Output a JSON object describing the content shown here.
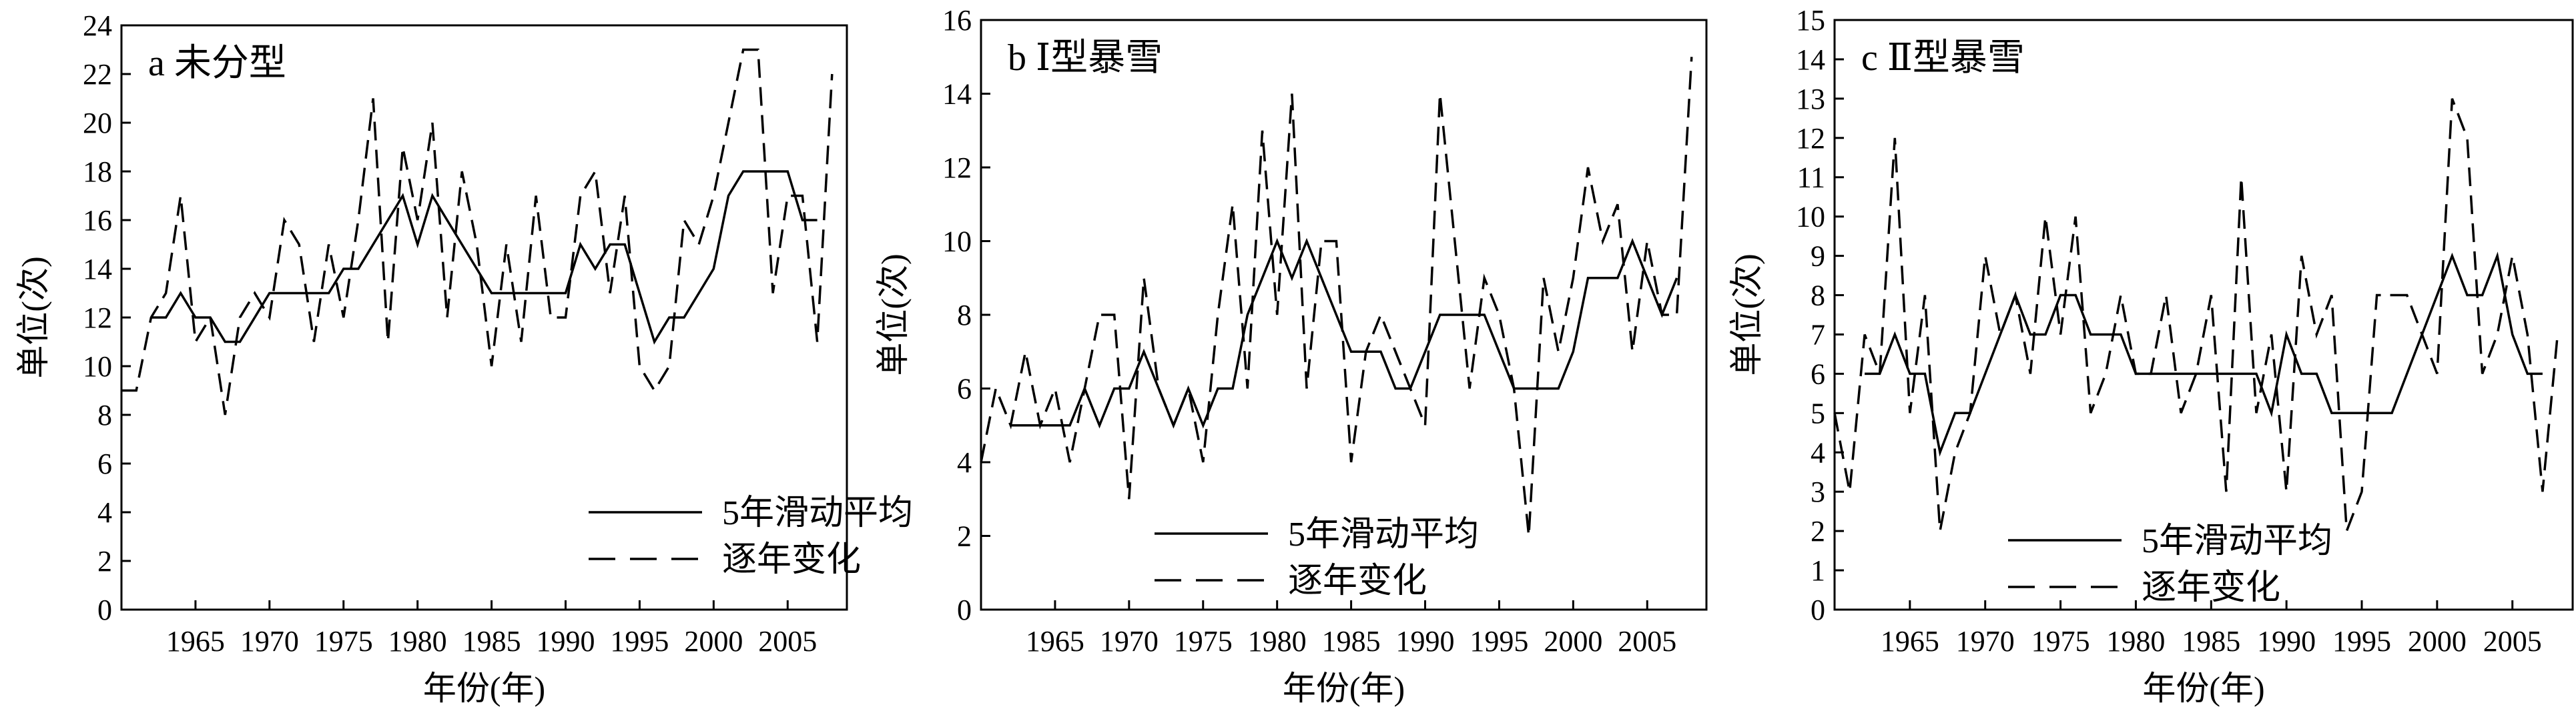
{
  "chart_data": [
    {
      "type": "line",
      "title": "a 未分型",
      "xlabel": "年份(年)",
      "ylabel": "单位(次)",
      "xlim": [
        1960,
        2009
      ],
      "ylim": [
        0,
        24
      ],
      "xticks": [
        1965,
        1970,
        1975,
        1980,
        1985,
        1990,
        1995,
        2000,
        2005
      ],
      "yticks": [
        0,
        2,
        4,
        6,
        8,
        10,
        12,
        14,
        16,
        18,
        20,
        22,
        24
      ],
      "grid": false,
      "legend_position": "bottom-right",
      "series": [
        {
          "name": "5年滑动平均",
          "style": "solid",
          "x": [
            1962,
            1963,
            1964,
            1965,
            1966,
            1967,
            1968,
            1969,
            1970,
            1971,
            1972,
            1973,
            1974,
            1975,
            1976,
            1977,
            1978,
            1979,
            1980,
            1981,
            1982,
            1983,
            1984,
            1985,
            1986,
            1987,
            1988,
            1989,
            1990,
            1991,
            1992,
            1993,
            1994,
            1995,
            1996,
            1997,
            1998,
            1999,
            2000,
            2001,
            2002,
            2003,
            2004,
            2005,
            2006,
            2007
          ],
          "y": [
            12,
            12,
            13,
            12,
            12,
            11,
            11,
            12,
            13,
            13,
            13,
            13,
            13,
            14,
            14,
            15,
            16,
            17,
            15,
            17,
            16,
            15,
            14,
            13,
            13,
            13,
            13,
            13,
            13,
            15,
            14,
            15,
            15,
            13,
            11,
            12,
            12,
            13,
            14,
            17,
            18,
            18,
            18,
            18,
            16,
            16
          ]
        },
        {
          "name": "逐年变化",
          "style": "dashed",
          "x": [
            1960,
            1961,
            1962,
            1963,
            1964,
            1965,
            1966,
            1967,
            1968,
            1969,
            1970,
            1971,
            1972,
            1973,
            1974,
            1975,
            1976,
            1977,
            1978,
            1979,
            1980,
            1981,
            1982,
            1983,
            1984,
            1985,
            1986,
            1987,
            1988,
            1989,
            1990,
            1991,
            1992,
            1993,
            1994,
            1995,
            1996,
            1997,
            1998,
            1999,
            2000,
            2001,
            2002,
            2003,
            2004,
            2005,
            2006,
            2007,
            2008
          ],
          "y": [
            9,
            9,
            12,
            13,
            17,
            11,
            12,
            8,
            12,
            13,
            12,
            16,
            15,
            11,
            15,
            12,
            16,
            21,
            11,
            19,
            16,
            20,
            12,
            18,
            15,
            10,
            15,
            11,
            17,
            12,
            12,
            17,
            18,
            13,
            17,
            10,
            9,
            10,
            16,
            15,
            17,
            20,
            23,
            23,
            13,
            17,
            17,
            11,
            22
          ]
        }
      ]
    },
    {
      "type": "line",
      "title": "b Ⅰ型暴雪",
      "xlabel": "年份(年)",
      "ylabel": "单位(次)",
      "xlim": [
        1960,
        2009
      ],
      "ylim": [
        0,
        16
      ],
      "xticks": [
        1965,
        1970,
        1975,
        1980,
        1985,
        1990,
        1995,
        2000,
        2005
      ],
      "yticks": [
        0,
        2,
        4,
        6,
        8,
        10,
        12,
        14,
        16
      ],
      "grid": false,
      "legend_position": "bottom-center",
      "series": [
        {
          "name": "5年滑动平均",
          "style": "solid",
          "x": [
            1962,
            1963,
            1964,
            1965,
            1966,
            1967,
            1968,
            1969,
            1970,
            1971,
            1972,
            1973,
            1974,
            1975,
            1976,
            1977,
            1978,
            1979,
            1980,
            1981,
            1982,
            1983,
            1984,
            1985,
            1986,
            1987,
            1988,
            1989,
            1990,
            1991,
            1992,
            1993,
            1994,
            1995,
            1996,
            1997,
            1998,
            1999,
            2000,
            2001,
            2002,
            2003,
            2004,
            2005,
            2006,
            2007
          ],
          "y": [
            5,
            5,
            5,
            5,
            5,
            6,
            5,
            6,
            6,
            7,
            6,
            5,
            6,
            5,
            6,
            6,
            8,
            9,
            10,
            9,
            10,
            9,
            8,
            7,
            7,
            7,
            6,
            6,
            7,
            8,
            8,
            8,
            8,
            7,
            6,
            6,
            6,
            6,
            7,
            9,
            9,
            9,
            10,
            9,
            8,
            9
          ]
        },
        {
          "name": "逐年变化",
          "style": "dashed",
          "x": [
            1960,
            1961,
            1962,
            1963,
            1964,
            1965,
            1966,
            1967,
            1968,
            1969,
            1970,
            1971,
            1972,
            1973,
            1974,
            1975,
            1976,
            1977,
            1978,
            1979,
            1980,
            1981,
            1982,
            1983,
            1984,
            1985,
            1986,
            1987,
            1988,
            1989,
            1990,
            1991,
            1992,
            1993,
            1994,
            1995,
            1996,
            1997,
            1998,
            1999,
            2000,
            2001,
            2002,
            2003,
            2004,
            2005,
            2006,
            2007,
            2008
          ],
          "y": [
            4,
            6,
            5,
            7,
            5,
            6,
            4,
            6,
            8,
            8,
            3,
            9,
            6,
            5,
            6,
            4,
            8,
            11,
            6,
            13,
            8,
            14,
            6,
            10,
            10,
            4,
            7,
            8,
            7,
            6,
            5,
            14,
            10,
            6,
            9,
            8,
            6,
            2,
            9,
            7,
            9,
            12,
            10,
            11,
            7,
            10,
            8,
            8,
            15
          ]
        }
      ]
    },
    {
      "type": "line",
      "title": "c Ⅱ型暴雪",
      "xlabel": "年份(年)",
      "ylabel": "单位(次)",
      "xlim": [
        1960,
        2009
      ],
      "ylim": [
        0,
        15
      ],
      "xticks": [
        1965,
        1970,
        1975,
        1980,
        1985,
        1990,
        1995,
        2000,
        2005
      ],
      "yticks": [
        0,
        1,
        2,
        3,
        4,
        5,
        6,
        7,
        8,
        9,
        10,
        11,
        12,
        13,
        14,
        15
      ],
      "grid": false,
      "legend_position": "bottom-center",
      "series": [
        {
          "name": "5年滑动平均",
          "style": "solid",
          "x": [
            1962,
            1963,
            1964,
            1965,
            1966,
            1967,
            1968,
            1969,
            1970,
            1971,
            1972,
            1973,
            1974,
            1975,
            1976,
            1977,
            1978,
            1979,
            1980,
            1981,
            1982,
            1983,
            1984,
            1985,
            1986,
            1987,
            1988,
            1989,
            1990,
            1991,
            1992,
            1993,
            1994,
            1995,
            1996,
            1997,
            1998,
            1999,
            2000,
            2001,
            2002,
            2003,
            2004,
            2005,
            2006,
            2007
          ],
          "y": [
            6,
            6,
            7,
            6,
            6,
            4,
            5,
            5,
            6,
            7,
            8,
            7,
            7,
            8,
            8,
            7,
            7,
            7,
            6,
            6,
            6,
            6,
            6,
            6,
            6,
            6,
            6,
            5,
            7,
            6,
            6,
            5,
            5,
            5,
            5,
            5,
            6,
            7,
            8,
            9,
            8,
            8,
            9,
            7,
            6,
            6
          ]
        },
        {
          "name": "逐年变化",
          "style": "dashed",
          "x": [
            1960,
            1961,
            1962,
            1963,
            1964,
            1965,
            1966,
            1967,
            1968,
            1969,
            1970,
            1971,
            1972,
            1973,
            1974,
            1975,
            1976,
            1977,
            1978,
            1979,
            1980,
            1981,
            1982,
            1983,
            1984,
            1985,
            1986,
            1987,
            1988,
            1989,
            1990,
            1991,
            1992,
            1993,
            1994,
            1995,
            1996,
            1997,
            1998,
            1999,
            2000,
            2001,
            2002,
            2003,
            2004,
            2005,
            2006,
            2007,
            2008
          ],
          "y": [
            5,
            3,
            7,
            6,
            12,
            5,
            8,
            2,
            4,
            5,
            9,
            7,
            8,
            6,
            10,
            7,
            10,
            5,
            6,
            8,
            6,
            6,
            8,
            5,
            6,
            8,
            3,
            11,
            5,
            7,
            3,
            9,
            7,
            8,
            2,
            3,
            8,
            8,
            8,
            7,
            6,
            13,
            12,
            6,
            7,
            9,
            7,
            3,
            7
          ]
        }
      ]
    }
  ]
}
